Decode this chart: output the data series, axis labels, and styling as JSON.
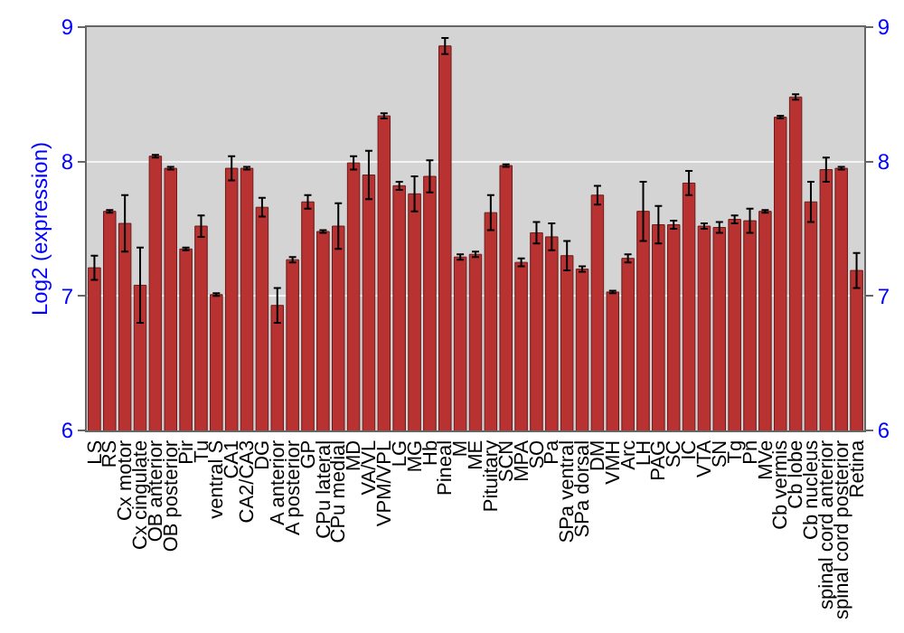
{
  "chart_data": {
    "type": "bar",
    "ylabel": "Log2 (expression)",
    "categories": [
      "LS",
      "RS",
      "Cx motor",
      "Cx cingulate",
      "OB anterior",
      "OB posterior",
      "Pir",
      "Tu",
      "ventral S",
      "CA1",
      "CA2/CA3",
      "DG",
      "A anterior",
      "A posterior",
      "GP",
      "CPu lateral",
      "CPu medial",
      "MD",
      "VA/VL",
      "VPM/VPL",
      "LG",
      "MG",
      "Hb",
      "Pineal",
      "M",
      "ME",
      "Pituitary",
      "SCN",
      "MPA",
      "SO",
      "Pa",
      "SPa ventral",
      "SPa dorsal",
      "DM",
      "VMH",
      "Arc",
      "LH",
      "PAG",
      "SC",
      "IC",
      "VTA",
      "SN",
      "Tg",
      "Pn",
      "MVe",
      "Cb vermis",
      "Cb lobe",
      "Cb nucleus",
      "spinal cord anterior",
      "spinal cord posterior",
      "Retina"
    ],
    "values": [
      7.21,
      7.63,
      7.54,
      7.08,
      8.04,
      7.95,
      7.35,
      7.52,
      7.01,
      7.95,
      7.95,
      7.66,
      6.93,
      7.27,
      7.7,
      7.48,
      7.52,
      7.99,
      7.9,
      8.34,
      7.82,
      7.76,
      7.89,
      8.86,
      7.29,
      7.31,
      7.62,
      7.97,
      7.25,
      7.47,
      7.44,
      7.3,
      7.2,
      7.75,
      7.03,
      7.28,
      7.63,
      7.53,
      7.53,
      7.84,
      7.52,
      7.51,
      7.57,
      7.56,
      7.63,
      8.33,
      8.48,
      7.7,
      7.94,
      7.95,
      7.19
    ],
    "errors": [
      0.09,
      0.01,
      0.21,
      0.28,
      0.01,
      0.01,
      0.01,
      0.08,
      0.01,
      0.09,
      0.01,
      0.07,
      0.13,
      0.02,
      0.05,
      0.01,
      0.17,
      0.05,
      0.18,
      0.02,
      0.03,
      0.13,
      0.12,
      0.06,
      0.02,
      0.02,
      0.13,
      0.01,
      0.03,
      0.08,
      0.1,
      0.11,
      0.02,
      0.07,
      0.01,
      0.03,
      0.22,
      0.14,
      0.03,
      0.09,
      0.02,
      0.04,
      0.03,
      0.09,
      0.01,
      0.01,
      0.02,
      0.15,
      0.09,
      0.01,
      0.13
    ],
    "color": "#b83232",
    "ylim": [
      6,
      9
    ],
    "yticks": [
      6,
      7,
      8,
      9
    ],
    "y2lim": [
      6,
      9
    ],
    "y2ticks": [
      6,
      7,
      8,
      9
    ],
    "grid": "y",
    "legend": false
  }
}
